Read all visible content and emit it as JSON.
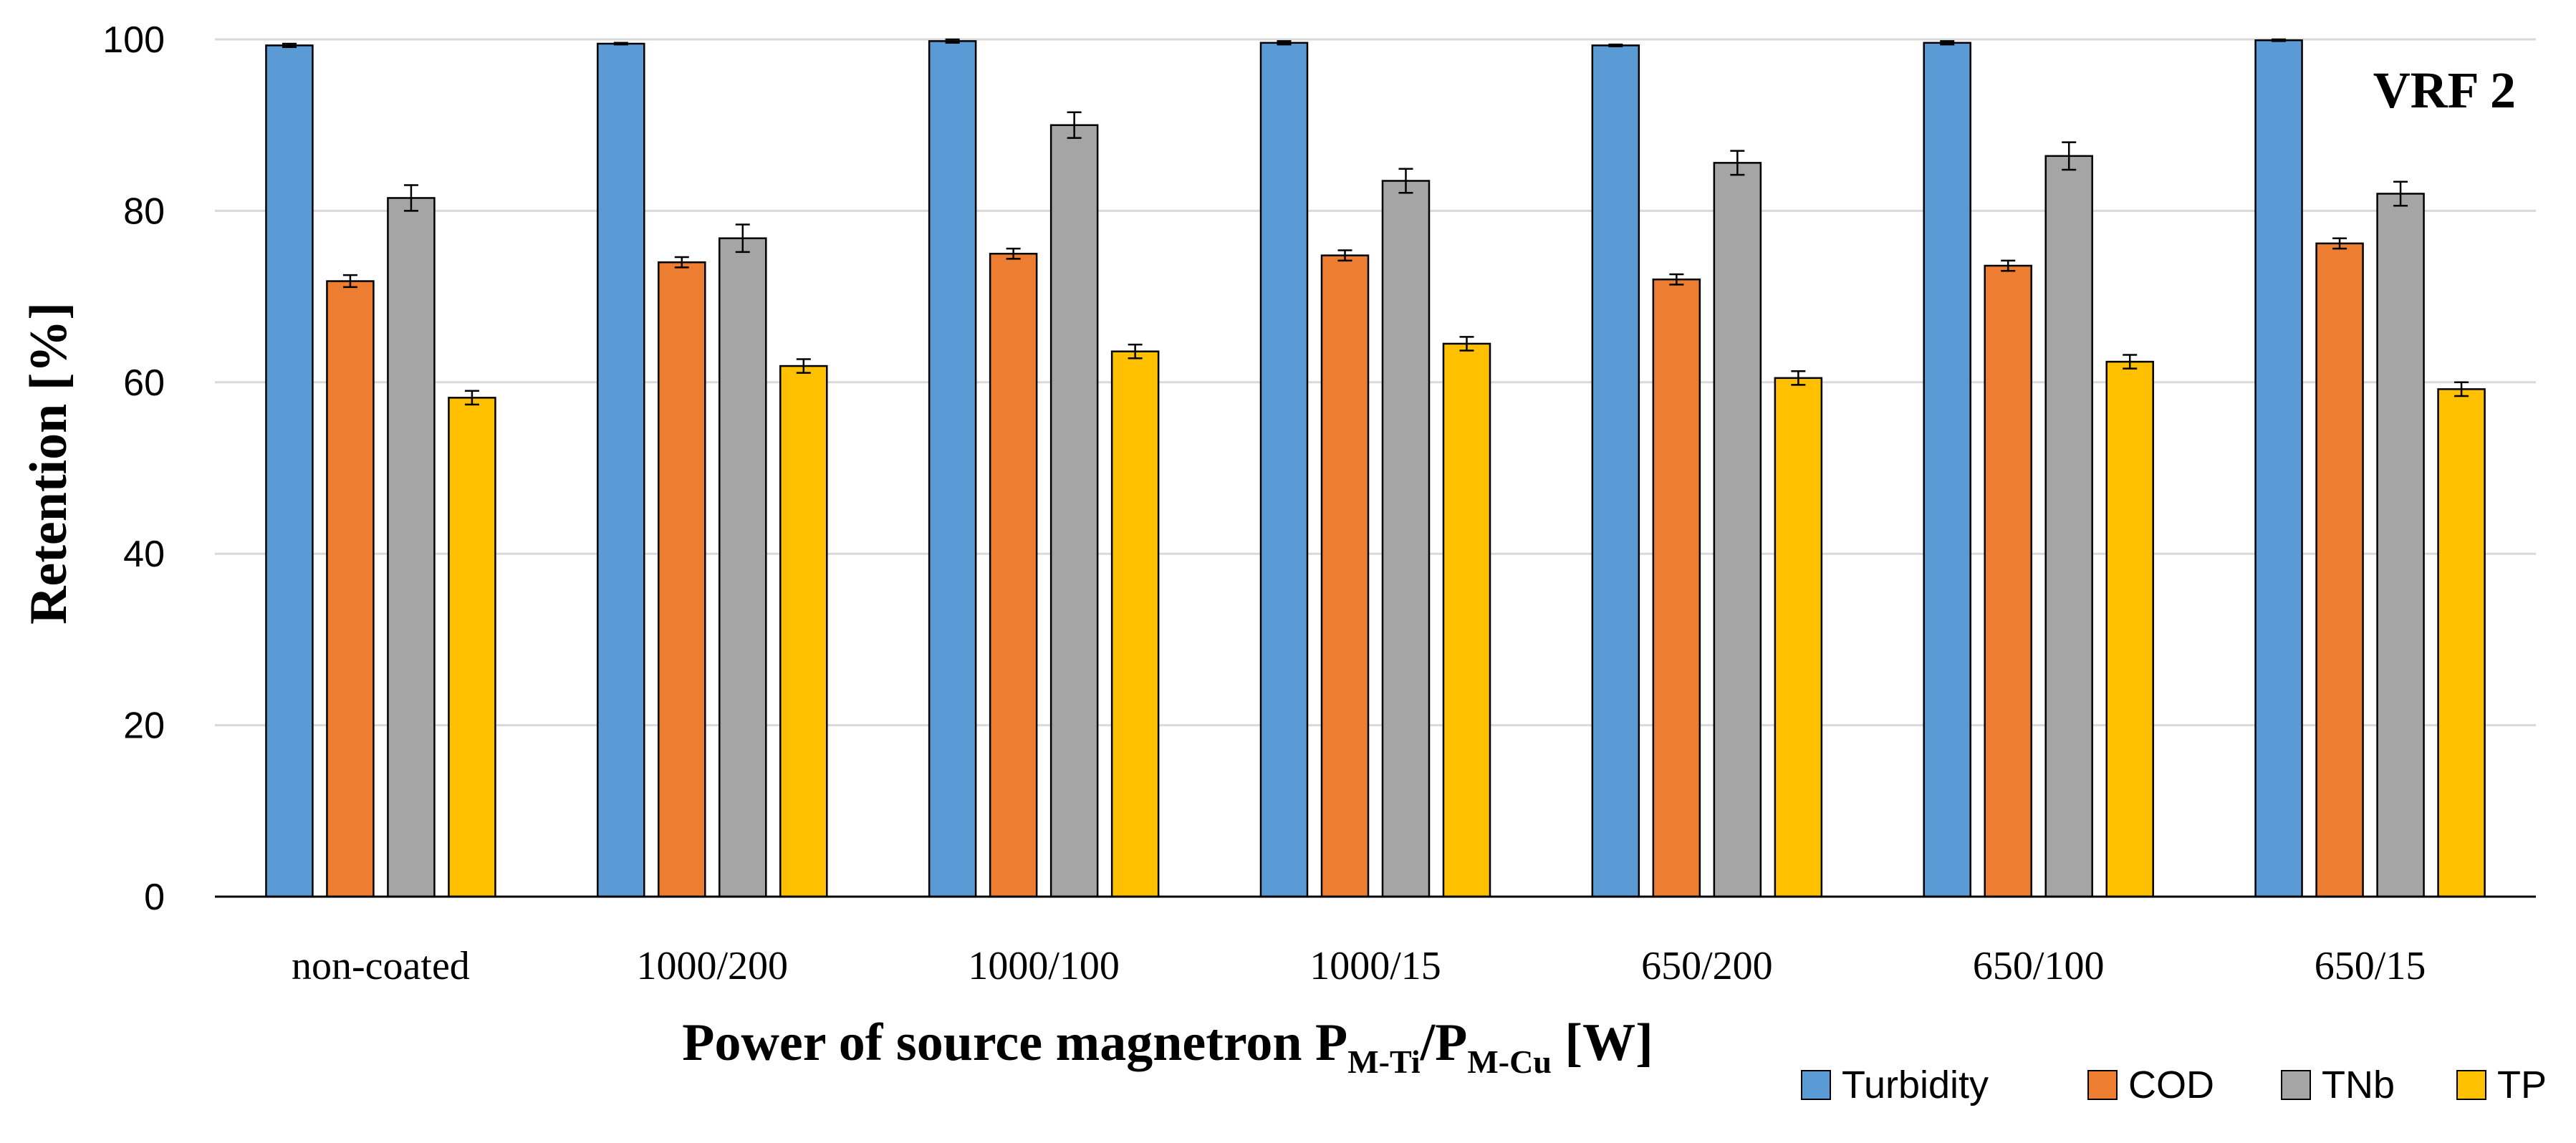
{
  "chart_data": {
    "type": "bar",
    "title": "",
    "annotation": "VRF 2",
    "xlabel": {
      "main": "Power of source magnetron P",
      "sub1": "M-Ti",
      "mid": "/P",
      "sub2": "M-Cu",
      "end": " [W]"
    },
    "ylabel": "Retention [%]",
    "ylim": [
      0,
      100
    ],
    "yticks": [
      "0",
      "20",
      "40",
      "60",
      "80",
      "100"
    ],
    "grid": true,
    "legend_position": "bottom-right",
    "categories": [
      "non-coated",
      "1000/200",
      "1000/100",
      "1000/15",
      "650/200",
      "650/100",
      "650/15"
    ],
    "series": [
      {
        "name": "Turbidity",
        "color": "#5B9BD5",
        "values": [
          99.3,
          99.5,
          99.8,
          99.6,
          99.3,
          99.6,
          99.9
        ],
        "errors": [
          0.2,
          0.1,
          0.2,
          0.2,
          0.1,
          0.2,
          0.1
        ]
      },
      {
        "name": "COD",
        "color": "#ED7D31",
        "values": [
          71.8,
          74.0,
          75.0,
          74.8,
          72.0,
          73.6,
          76.2
        ],
        "errors": [
          0.7,
          0.6,
          0.6,
          0.6,
          0.6,
          0.6,
          0.6
        ]
      },
      {
        "name": "TNb",
        "color": "#A5A5A5",
        "values": [
          81.5,
          76.8,
          90.0,
          83.5,
          85.6,
          86.4,
          82.0
        ],
        "errors": [
          1.5,
          1.6,
          1.5,
          1.4,
          1.4,
          1.6,
          1.4
        ]
      },
      {
        "name": "TP",
        "color": "#FFC000",
        "values": [
          58.2,
          61.9,
          63.6,
          64.5,
          60.5,
          62.4,
          59.2
        ],
        "errors": [
          0.8,
          0.8,
          0.8,
          0.8,
          0.8,
          0.8,
          0.8
        ]
      }
    ]
  }
}
